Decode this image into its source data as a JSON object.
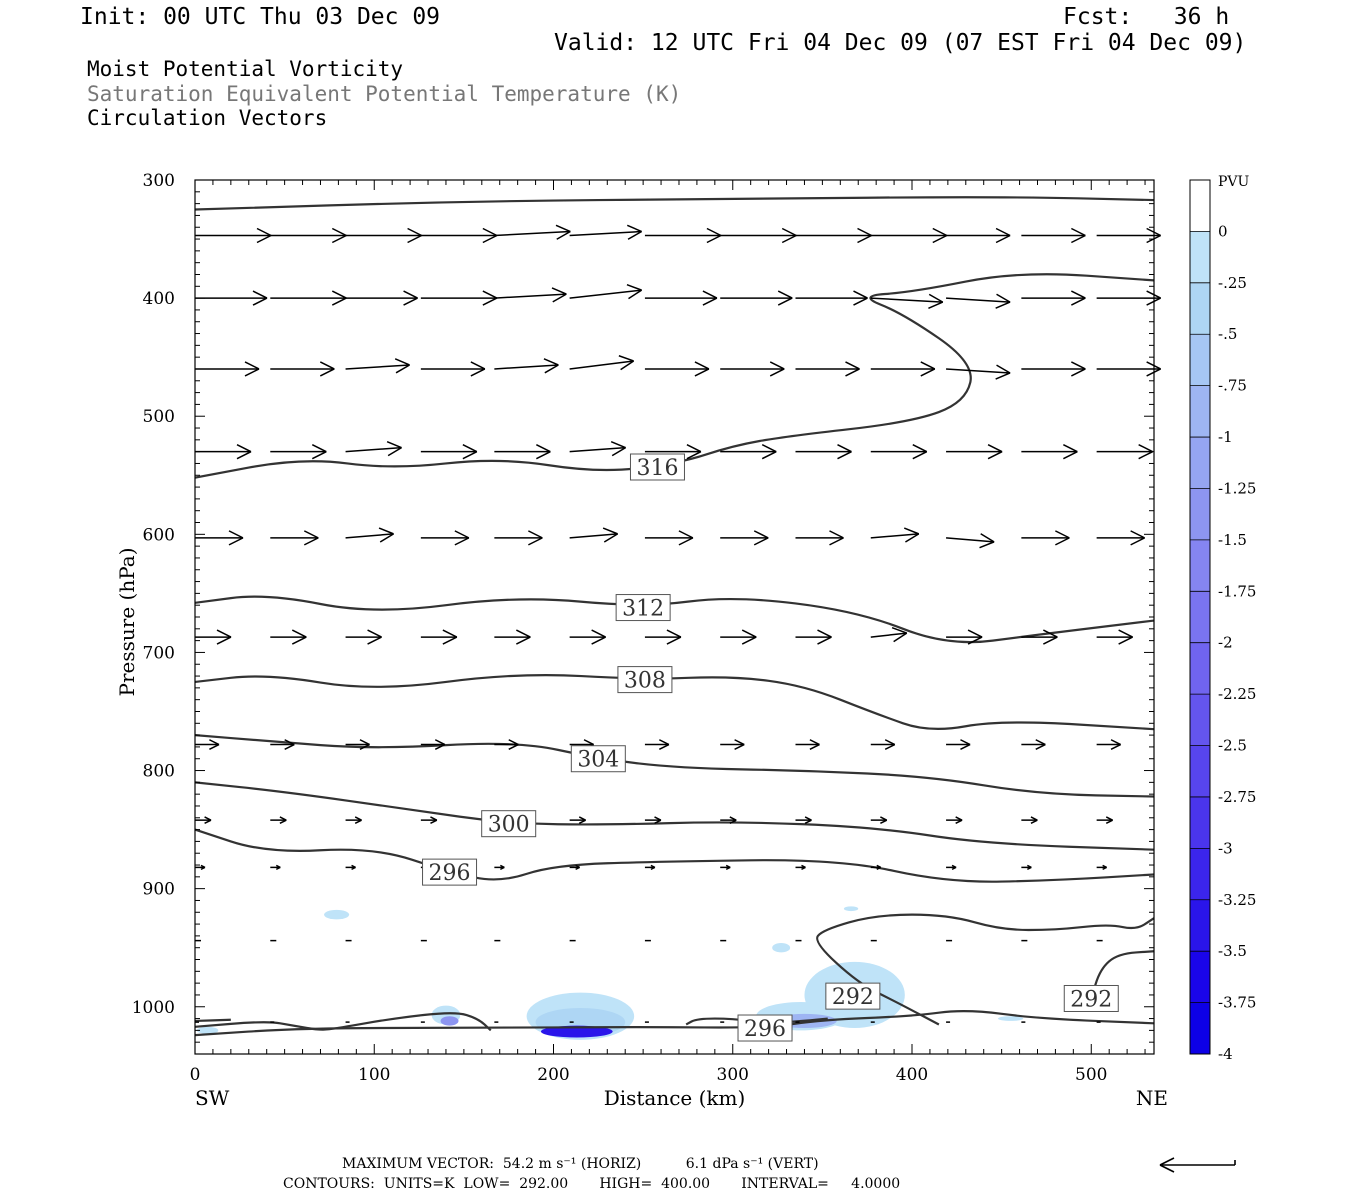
{
  "header": {
    "init": "Init: 00 UTC Thu 03 Dec 09",
    "fcst": "Fcst:   36 h",
    "valid": "Valid: 12 UTC Fri 04 Dec 09 (07 EST Fri 04 Dec 09)"
  },
  "titles": {
    "line1": "Moist Potential Vorticity",
    "line2": "Saturation Equivalent Potential Temperature (K)",
    "line3": "Circulation Vectors"
  },
  "footer": {
    "line1": "MAXIMUM VECTOR:  54.2 m s⁻¹ (HORIZ)          6.1 dPa s⁻¹ (VERT)",
    "line2": "CONTOURS:  UNITS=K  LOW=  292.00       HIGH=  400.00       INTERVAL=     4.0000"
  },
  "colors": {
    "contour": "#333333",
    "pvu_scale": [
      "#ffffff",
      "#ffffff",
      "#bfe3f8",
      "#aed6f4",
      "#a6c6f4",
      "#9eb5f3",
      "#95a5f2",
      "#8d95f1",
      "#8585f1",
      "#7a74f0",
      "#7064ef",
      "#6455ee",
      "#5745ed",
      "#4a35ec",
      "#3b25ec",
      "#2a15ea",
      "#1a05e9",
      "#0d00e6"
    ]
  },
  "chart_data": {
    "type": "cross-section",
    "xlabel": "Distance (km)",
    "ylabel": "Pressure (hPa)",
    "xlim": [
      0,
      535
    ],
    "ylim": [
      1040,
      300
    ],
    "xticks": [
      "0",
      "100",
      "200",
      "300",
      "400",
      "500"
    ],
    "yticks": [
      "300",
      "400",
      "500",
      "600",
      "700",
      "800",
      "900",
      "1000"
    ],
    "x_end_labels": {
      "left": "SW",
      "right": "NE"
    },
    "colorbar": {
      "label": "PVU",
      "ticks": [
        "0",
        "-.25",
        "-.5",
        "-.75",
        "-1",
        "-1.25",
        "-1.5",
        "-1.75",
        "-2",
        "-2.25",
        "-2.5",
        "-2.75",
        "-3",
        "-3.25",
        "-3.5",
        "-3.75",
        "-4"
      ]
    },
    "contours": [
      {
        "level": 316,
        "label": "316",
        "label_at": [
          258,
          543
        ],
        "points": [
          [
            0,
            552
          ],
          [
            60,
            535
          ],
          [
            110,
            545
          ],
          [
            170,
            535
          ],
          [
            225,
            548
          ],
          [
            270,
            540
          ],
          [
            300,
            525
          ],
          [
            330,
            517
          ],
          [
            400,
            505
          ],
          [
            430,
            488
          ],
          [
            435,
            455
          ],
          [
            395,
            413
          ],
          [
            370,
            398
          ],
          [
            400,
            395
          ],
          [
            460,
            377
          ],
          [
            535,
            385
          ]
        ]
      },
      {
        "level": 316,
        "label": "",
        "points": [
          [
            0,
            325
          ],
          [
            150,
            318
          ],
          [
            300,
            316
          ],
          [
            450,
            314
          ],
          [
            535,
            317
          ]
        ]
      },
      {
        "level": 312,
        "label": "312",
        "label_at": [
          250,
          662
        ],
        "points": [
          [
            0,
            658
          ],
          [
            40,
            650
          ],
          [
            100,
            668
          ],
          [
            180,
            652
          ],
          [
            250,
            662
          ],
          [
            300,
            652
          ],
          [
            370,
            665
          ],
          [
            420,
            695
          ],
          [
            470,
            685
          ],
          [
            535,
            673
          ]
        ]
      },
      {
        "level": 308,
        "label": "308",
        "label_at": [
          251,
          723
        ],
        "points": [
          [
            0,
            725
          ],
          [
            40,
            718
          ],
          [
            100,
            733
          ],
          [
            180,
            717
          ],
          [
            251,
            723
          ],
          [
            300,
            720
          ],
          [
            340,
            728
          ],
          [
            380,
            752
          ],
          [
            410,
            768
          ],
          [
            450,
            757
          ],
          [
            535,
            765
          ]
        ]
      },
      {
        "level": 304,
        "label": "304",
        "label_at": [
          225,
          790
        ],
        "points": [
          [
            0,
            770
          ],
          [
            40,
            775
          ],
          [
            100,
            782
          ],
          [
            180,
            775
          ],
          [
            225,
            790
          ],
          [
            270,
            798
          ],
          [
            340,
            800
          ],
          [
            410,
            805
          ],
          [
            470,
            820
          ],
          [
            535,
            822
          ]
        ]
      },
      {
        "level": 300,
        "label": "300",
        "label_at": [
          175,
          845
        ],
        "points": [
          [
            0,
            810
          ],
          [
            50,
            818
          ],
          [
            120,
            833
          ],
          [
            175,
            845
          ],
          [
            230,
            846
          ],
          [
            300,
            843
          ],
          [
            380,
            848
          ],
          [
            440,
            862
          ],
          [
            535,
            867
          ]
        ]
      },
      {
        "level": 296,
        "label": "296",
        "label_at": [
          142,
          886
        ],
        "points": [
          [
            0,
            850
          ],
          [
            40,
            870
          ],
          [
            100,
            865
          ],
          [
            142,
            886
          ],
          [
            170,
            895
          ],
          [
            200,
            880
          ],
          [
            260,
            877
          ],
          [
            360,
            875
          ],
          [
            420,
            895
          ],
          [
            480,
            893
          ],
          [
            535,
            888
          ]
        ]
      },
      {
        "level": 292,
        "label": "292",
        "label_at": [
          367,
          991
        ],
        "points": [
          [
            415,
            1015
          ],
          [
            390,
            995
          ],
          [
            370,
            980
          ],
          [
            345,
            945
          ],
          [
            350,
            935
          ],
          [
            380,
            922
          ],
          [
            420,
            922
          ],
          [
            450,
            935
          ],
          [
            480,
            935
          ],
          [
            510,
            930
          ],
          [
            525,
            935
          ],
          [
            535,
            925
          ]
        ]
      },
      {
        "level": 292,
        "label": "292",
        "label_at": [
          500,
          993
        ],
        "points": [
          [
            500,
            993
          ],
          [
            505,
            968
          ],
          [
            515,
            955
          ],
          [
            535,
            953
          ]
        ]
      },
      {
        "level": 296,
        "label": "296",
        "label_at": [
          318,
          1018
        ],
        "points": [
          [
            0,
            1017
          ],
          [
            40,
            1012
          ],
          [
            55,
            1016
          ],
          [
            70,
            1020
          ],
          [
            80,
            1018
          ],
          [
            110,
            1010
          ],
          [
            145,
            1004
          ],
          [
            158,
            1010
          ],
          [
            165,
            1020
          ]
        ]
      },
      {
        "level": 296,
        "label": "",
        "points": [
          [
            0,
            1024
          ],
          [
            60,
            1018
          ],
          [
            150,
            1018
          ],
          [
            250,
            1017
          ],
          [
            318,
            1018
          ],
          [
            350,
            1011
          ],
          [
            400,
            1008
          ],
          [
            430,
            1002
          ],
          [
            470,
            1010
          ],
          [
            535,
            1014
          ]
        ]
      },
      {
        "level": 296,
        "label": "",
        "points": [
          [
            0,
            1012
          ],
          [
            20,
            1011
          ]
        ]
      },
      {
        "level": 296,
        "label": "",
        "points": [
          [
            274,
            1015
          ],
          [
            280,
            1010
          ],
          [
            300,
            1010
          ],
          [
            320,
            1014
          ],
          [
            340,
            1012
          ],
          [
            353,
            1010
          ]
        ]
      }
    ],
    "pv_shading": [
      {
        "level_index": 2,
        "center": [
          368,
          990
        ],
        "rx": 28,
        "ry": 28
      },
      {
        "level_index": 2,
        "center": [
          215,
          1008
        ],
        "rx": 30,
        "ry": 20
      },
      {
        "level_index": 3,
        "center": [
          215,
          1013
        ],
        "rx": 25,
        "ry": 12
      },
      {
        "level_index": 15,
        "center": [
          213,
          1021
        ],
        "rx": 20,
        "ry": 5
      },
      {
        "level_index": 2,
        "center": [
          338,
          1008
        ],
        "rx": 25,
        "ry": 12
      },
      {
        "level_index": 5,
        "center": [
          340,
          1012
        ],
        "rx": 18,
        "ry": 6
      },
      {
        "level_index": 2,
        "center": [
          140,
          1007
        ],
        "rx": 8,
        "ry": 8
      },
      {
        "level_index": 7,
        "center": [
          142,
          1012
        ],
        "rx": 5,
        "ry": 4
      },
      {
        "level_index": 2,
        "center": [
          79,
          922
        ],
        "rx": 7,
        "ry": 4
      },
      {
        "level_index": 2,
        "center": [
          327,
          950
        ],
        "rx": 5,
        "ry": 4
      },
      {
        "level_index": 2,
        "center": [
          7,
          1020
        ],
        "rx": 6,
        "ry": 3
      },
      {
        "level_index": 2,
        "center": [
          455,
          1010
        ],
        "rx": 7,
        "ry": 2
      },
      {
        "level_index": 2,
        "center": [
          366,
          917
        ],
        "rx": 4,
        "ry": 2
      }
    ],
    "vectors": [
      {
        "p": 347,
        "x": [
          0,
          42,
          84,
          126,
          167,
          209,
          251,
          293,
          335,
          377,
          419,
          461,
          503
        ],
        "u": [
          38,
          38,
          38,
          38,
          38,
          36,
          38,
          38,
          38,
          38,
          32,
          32,
          32
        ],
        "v": [
          0,
          0,
          0,
          0,
          -1,
          -1,
          0,
          0,
          0,
          0,
          0,
          0,
          0
        ]
      },
      {
        "p": 400,
        "x": [
          0,
          42,
          84,
          126,
          167,
          209,
          251,
          293,
          335,
          377,
          419,
          461,
          503
        ],
        "u": [
          36,
          38,
          36,
          38,
          36,
          36,
          36,
          36,
          36,
          36,
          32,
          32,
          32
        ],
        "v": [
          0,
          0,
          0,
          0,
          -1,
          -2,
          0,
          0,
          0,
          1,
          1,
          0,
          0
        ]
      },
      {
        "p": 460,
        "x": [
          0,
          42,
          84,
          126,
          167,
          209,
          251,
          293,
          335,
          377,
          419,
          461,
          503
        ],
        "u": [
          32,
          32,
          32,
          32,
          32,
          32,
          32,
          32,
          32,
          32,
          32,
          32,
          32
        ],
        "v": [
          0,
          0,
          -1,
          0,
          -1,
          -2,
          0,
          0,
          0,
          0,
          1,
          0,
          0
        ]
      },
      {
        "p": 530,
        "x": [
          0,
          42,
          84,
          126,
          167,
          209,
          251,
          293,
          335,
          377,
          419,
          461,
          503
        ],
        "u": [
          28,
          28,
          28,
          28,
          28,
          28,
          28,
          28,
          28,
          28,
          28,
          28,
          28
        ],
        "v": [
          0,
          0,
          -1,
          0,
          0,
          -1,
          0,
          0,
          0,
          0,
          0,
          0,
          0
        ]
      },
      {
        "p": 603,
        "x": [
          0,
          42,
          84,
          126,
          167,
          209,
          251,
          293,
          335,
          377,
          419,
          461,
          503
        ],
        "u": [
          24,
          24,
          24,
          24,
          24,
          24,
          24,
          24,
          24,
          24,
          24,
          24,
          24
        ],
        "v": [
          0,
          0,
          -1,
          0,
          0,
          -1,
          0,
          0,
          0,
          -1,
          1,
          0,
          0
        ]
      },
      {
        "p": 687,
        "x": [
          0,
          42,
          84,
          126,
          167,
          209,
          251,
          293,
          335,
          377,
          419,
          461,
          503
        ],
        "u": [
          18,
          18,
          18,
          18,
          18,
          18,
          18,
          18,
          18,
          18,
          18,
          18,
          18
        ],
        "v": [
          0,
          0,
          0,
          0,
          0,
          0,
          0,
          0,
          0,
          -1,
          0,
          0,
          0
        ]
      },
      {
        "p": 778,
        "x": [
          0,
          42,
          84,
          126,
          167,
          209,
          251,
          293,
          335,
          377,
          419,
          461,
          503
        ],
        "u": [
          12,
          12,
          12,
          12,
          12,
          12,
          12,
          12,
          12,
          12,
          12,
          12,
          12
        ],
        "v": [
          0,
          0,
          0,
          0,
          0,
          0,
          0,
          0,
          0,
          0,
          0,
          0,
          0
        ]
      },
      {
        "p": 842,
        "x": [
          0,
          42,
          84,
          126,
          167,
          209,
          251,
          293,
          335,
          377,
          419,
          461,
          503
        ],
        "u": [
          8,
          8,
          8,
          8,
          8,
          8,
          8,
          8,
          8,
          8,
          8,
          8,
          8
        ],
        "v": [
          0,
          0,
          0,
          0,
          0,
          0,
          0,
          0,
          0,
          0,
          0,
          0,
          0
        ]
      },
      {
        "p": 882,
        "x": [
          0,
          42,
          84,
          126,
          167,
          209,
          251,
          293,
          335,
          377,
          419,
          461,
          503
        ],
        "u": [
          5,
          5,
          5,
          5,
          5,
          5,
          5,
          5,
          5,
          5,
          5,
          5,
          5
        ],
        "v": [
          0,
          0,
          0,
          0,
          0,
          0,
          0,
          0,
          0,
          0,
          0,
          0,
          0
        ]
      },
      {
        "p": 944,
        "x": [
          0,
          42,
          84,
          126,
          167,
          209,
          251,
          293,
          335,
          377,
          419,
          461,
          503
        ],
        "u": [
          3,
          3,
          3,
          3,
          3,
          3,
          3,
          3,
          3,
          3,
          3,
          3,
          3
        ],
        "v": [
          0,
          0,
          0,
          0,
          0,
          0,
          0,
          0,
          0,
          0,
          0,
          0,
          0
        ]
      },
      {
        "p": 1013,
        "x": [
          0,
          42,
          84,
          126,
          167,
          209,
          251,
          293,
          335,
          377,
          419,
          461,
          503
        ],
        "u": [
          2,
          2,
          2,
          2,
          2,
          2,
          2,
          2,
          2,
          2,
          2,
          2,
          2
        ],
        "v": [
          0,
          0,
          0,
          0,
          0,
          0,
          0,
          0,
          0,
          0,
          0,
          0,
          0
        ]
      }
    ]
  }
}
